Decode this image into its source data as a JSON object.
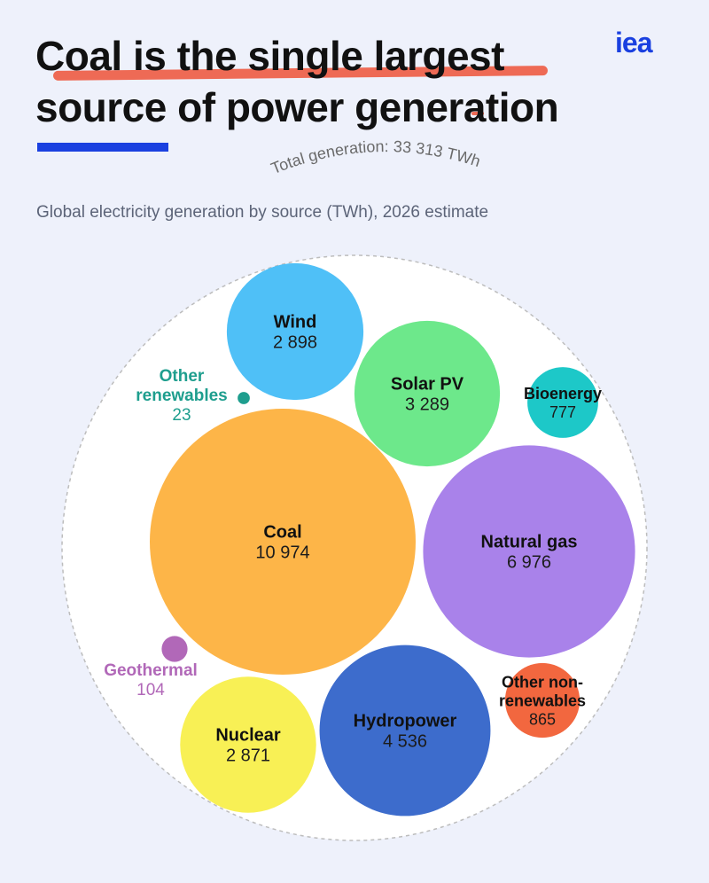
{
  "header": {
    "title_line1": "Coal is the single largest",
    "title_line2": "source of power generation",
    "logo_text": "iea",
    "subtitle": "Global electricity generation by source (TWh), 2026 estimate"
  },
  "colors": {
    "background": "#eef1fb",
    "accent_blue": "#1a40e0",
    "highlight": "#ee6a55"
  },
  "chart_data": {
    "type": "bubble",
    "unit": "TWh",
    "total_label": "Total generation: 33 313 TWh",
    "total": 33313,
    "items": [
      {
        "name": "Wind",
        "value": 2898,
        "value_label": "2 898",
        "color": "#4fc0f7",
        "label_position": "inside"
      },
      {
        "name": "Solar PV",
        "value": 3289,
        "value_label": "3 289",
        "color": "#6de88b",
        "label_position": "inside"
      },
      {
        "name": "Bioenergy",
        "value": 777,
        "value_label": "777",
        "color": "#1dc8c8",
        "label_position": "inside"
      },
      {
        "name": "Other renewables",
        "value": 23,
        "value_label": "23",
        "color": "#1e9e8e",
        "label_position": "outside"
      },
      {
        "name": "Coal",
        "value": 10974,
        "value_label": "10 974",
        "color": "#fdb548",
        "label_position": "inside"
      },
      {
        "name": "Natural gas",
        "value": 6976,
        "value_label": "6 976",
        "color": "#a982ea",
        "label_position": "inside"
      },
      {
        "name": "Geothermal",
        "value": 104,
        "value_label": "104",
        "color": "#b168b8",
        "label_position": "outside"
      },
      {
        "name": "Nuclear",
        "value": 2871,
        "value_label": "2 871",
        "color": "#f8f055",
        "label_position": "inside"
      },
      {
        "name": "Hydropower",
        "value": 4536,
        "value_label": "4 536",
        "color": "#3d6ccc",
        "label_position": "inside"
      },
      {
        "name": "Other non-renewables",
        "value": 865,
        "value_label": "865",
        "color": "#f2673f",
        "label_position": "inside"
      }
    ]
  }
}
